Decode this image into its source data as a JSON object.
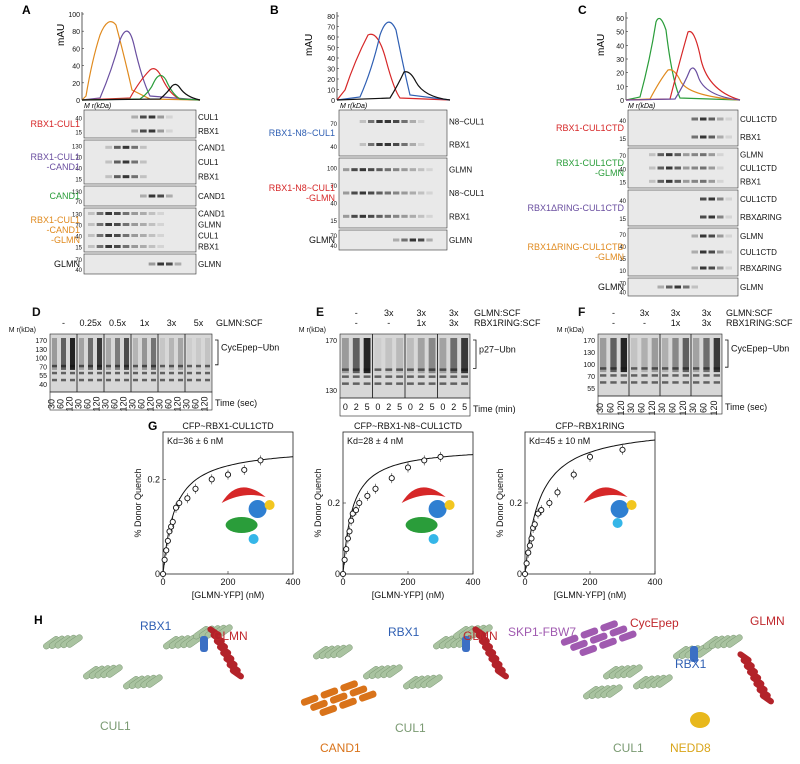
{
  "panels": {
    "A": {
      "letter": "A",
      "ylabel": "mAU",
      "yticks": [
        "100",
        "80",
        "60",
        "40",
        "20",
        "0"
      ],
      "mw_header": "M r(kDa)",
      "rows": [
        {
          "label": "RBX1-CUL1",
          "color": "#d62728",
          "right": [
            "CUL1",
            "RBX1"
          ],
          "mw": [
            "40",
            "15"
          ]
        },
        {
          "label": "RBX1-CUL1\n-CAND1",
          "color": "#6a4fa0",
          "right": [
            "CAND1",
            "CUL1",
            "RBX1"
          ],
          "mw": [
            "130",
            "70",
            "40",
            "15"
          ]
        },
        {
          "label": "CAND1",
          "color": "#2a9d3a",
          "right": [
            "CAND1"
          ],
          "mw": [
            "130",
            "70"
          ]
        },
        {
          "label": "RBX1-CUL1\n-CAND1\n-GLMN",
          "color": "#e08a1e",
          "right": [
            "CAND1",
            "GLMN",
            "CUL1",
            "RBX1"
          ],
          "mw": [
            "130",
            "70",
            "40",
            "15"
          ]
        },
        {
          "label": "GLMN",
          "color": "#111111",
          "right": [
            "GLMN"
          ],
          "mw": [
            "70",
            "40"
          ]
        }
      ]
    },
    "B": {
      "letter": "B",
      "ylabel": "mAU",
      "yticks": [
        "80",
        "70",
        "60",
        "50",
        "40",
        "30",
        "20",
        "10",
        "0"
      ],
      "mw_header": "M r(kDa)",
      "rows": [
        {
          "label": "RBX1-N8~CUL1",
          "color": "#2f5fb3",
          "right": [
            "N8~CUL1",
            "RBX1"
          ],
          "mw": [
            "70",
            "40"
          ]
        },
        {
          "label": "RBX1-N8~CUL1\n-GLMN",
          "color": "#d62728",
          "right": [
            "GLMN",
            "N8~CUL1",
            "RBX1"
          ],
          "mw": [
            "100",
            "70",
            "40",
            "15"
          ]
        },
        {
          "label": "GLMN",
          "color": "#111111",
          "right": [
            "GLMN"
          ],
          "mw": [
            "70",
            "40"
          ]
        }
      ]
    },
    "C": {
      "letter": "C",
      "ylabel": "mAU",
      "yticks": [
        "60",
        "50",
        "40",
        "30",
        "20",
        "10",
        "0"
      ],
      "mw_header": "M r(kDa)",
      "rows": [
        {
          "label": "RBX1-CUL1CTD",
          "color": "#d62728",
          "right": [
            "CUL1CTD",
            "RBX1"
          ],
          "mw": [
            "40",
            "15"
          ]
        },
        {
          "label": "RBX1-CUL1CTD\n-GLMN",
          "color": "#2a9d3a",
          "right": [
            "GLMN",
            "CUL1CTD",
            "RBX1"
          ],
          "mw": [
            "70",
            "40",
            "15"
          ]
        },
        {
          "label": "RBX1ΔRING-CUL1CTD",
          "color": "#6a4fa0",
          "right": [
            "CUL1CTD",
            "RBXΔRING"
          ],
          "mw": [
            "40",
            "15"
          ]
        },
        {
          "label": "RBX1ΔRING-CUL1CTD\n-GLMN",
          "color": "#e08a1e",
          "right": [
            "GLMN",
            "CUL1CTD",
            "RBXΔRING"
          ],
          "mw": [
            "70",
            "40",
            "15",
            "10"
          ]
        },
        {
          "label": "GLMN",
          "color": "#111111",
          "right": [
            "GLMN"
          ],
          "mw": [
            "70",
            "40"
          ]
        }
      ]
    },
    "D": {
      "letter": "D",
      "conditions": [
        "-",
        "0.25x",
        "0.5x",
        "1x",
        "3x",
        "5x"
      ],
      "cond_label": "GLMN:SCF",
      "times": [
        "30",
        "60",
        "120"
      ],
      "xlabel": "Time (sec)",
      "product": "CycEpep~Ubn",
      "mw": [
        "170",
        "130",
        "100",
        "70",
        "55",
        "40"
      ]
    },
    "E": {
      "letter": "E",
      "row1": [
        "-",
        "3x",
        "3x",
        "3x"
      ],
      "row1_label": "GLMN:SCF",
      "row2": [
        "-",
        "-",
        "1x",
        "3x"
      ],
      "row2_label": "RBX1RING:SCF",
      "times": [
        "0",
        "2",
        "5"
      ],
      "xlabel": "Time (min)",
      "product": "p27~Ubn",
      "mw": [
        "170",
        "130"
      ]
    },
    "F": {
      "letter": "F",
      "row1": [
        "-",
        "3x",
        "3x",
        "3x"
      ],
      "row1_label": "GLMN:SCF",
      "row2": [
        "-",
        "-",
        "1x",
        "3x"
      ],
      "row2_label": "RBX1RING:SCF",
      "times": [
        "30",
        "60",
        "120"
      ],
      "xlabel": "Time (sec)",
      "product": "CycEpep~Ubn",
      "mw": [
        "170",
        "130",
        "100",
        "70",
        "55"
      ]
    },
    "G": {
      "letter": "G",
      "ylabel": "% Donor Quench",
      "xlabel": "[GLMN-YFP] (nM)"
    },
    "H": {
      "letter": "H",
      "structures": [
        {
          "labels": [
            {
              "text": "RBX1",
              "color": "#2f5fb3"
            },
            {
              "text": "GLMN",
              "color": "#c0282d"
            },
            {
              "text": "CUL1",
              "color": "#7a9a72"
            }
          ]
        },
        {
          "labels": [
            {
              "text": "RBX1",
              "color": "#2f5fb3"
            },
            {
              "text": "GLMN",
              "color": "#c0282d"
            },
            {
              "text": "CAND1",
              "color": "#d9731a"
            },
            {
              "text": "CUL1",
              "color": "#7a9a72"
            }
          ]
        },
        {
          "labels": [
            {
              "text": "SKP1-FBW7",
              "color": "#a05ab0"
            },
            {
              "text": "CycEpep",
              "color": "#c0282d"
            },
            {
              "text": "RBX1",
              "color": "#2f5fb3"
            },
            {
              "text": "GLMN",
              "color": "#c0282d"
            },
            {
              "text": "CUL1",
              "color": "#7a9a72"
            },
            {
              "text": "NEDD8",
              "color": "#d9a51a"
            }
          ]
        }
      ]
    }
  },
  "chart_data": [
    {
      "type": "scatter",
      "title": "CFP~RBX1-CUL1CTD",
      "annotation": "Kd=36 ± 6 nM",
      "xlabel": "[GLMN-YFP] (nM)",
      "ylabel": "% Donor Quench",
      "xlim": [
        0,
        400
      ],
      "ylim": [
        0,
        0.3
      ],
      "xticks": [
        0,
        200,
        400
      ],
      "yticks": [
        0,
        0.2
      ],
      "points": [
        [
          0,
          0.0
        ],
        [
          5,
          0.03
        ],
        [
          10,
          0.05
        ],
        [
          15,
          0.07
        ],
        [
          20,
          0.09
        ],
        [
          25,
          0.1
        ],
        [
          30,
          0.11
        ],
        [
          40,
          0.14
        ],
        [
          50,
          0.15
        ],
        [
          75,
          0.16
        ],
        [
          100,
          0.18
        ],
        [
          150,
          0.2
        ],
        [
          200,
          0.21
        ],
        [
          250,
          0.22
        ],
        [
          300,
          0.24
        ]
      ],
      "fit": {
        "model": "hyperbolic",
        "bmax": 0.27,
        "kd": 36
      }
    },
    {
      "type": "scatter",
      "title": "CFP~RBX1-N8~CUL1CTD",
      "annotation": "Kd=28 ± 4 nM",
      "xlabel": "[GLMN-YFP] (nM)",
      "ylabel": "% Donor Quench",
      "xlim": [
        0,
        400
      ],
      "ylim": [
        0,
        0.4
      ],
      "xticks": [
        0,
        200,
        400
      ],
      "yticks": [
        0,
        0.2
      ],
      "points": [
        [
          0,
          0.0
        ],
        [
          5,
          0.04
        ],
        [
          10,
          0.07
        ],
        [
          15,
          0.1
        ],
        [
          20,
          0.12
        ],
        [
          25,
          0.15
        ],
        [
          30,
          0.17
        ],
        [
          40,
          0.18
        ],
        [
          50,
          0.2
        ],
        [
          75,
          0.22
        ],
        [
          100,
          0.24
        ],
        [
          150,
          0.27
        ],
        [
          200,
          0.3
        ],
        [
          250,
          0.32
        ],
        [
          300,
          0.33
        ]
      ],
      "fit": {
        "model": "hyperbolic",
        "bmax": 0.36,
        "kd": 28
      }
    },
    {
      "type": "scatter",
      "title": "CFP~RBX1RING",
      "annotation": "Kd=45 ± 10 nM",
      "xlabel": "[GLMN-YFP] (nM)",
      "ylabel": "% Donor Quench",
      "xlim": [
        0,
        400
      ],
      "ylim": [
        0,
        0.4
      ],
      "xticks": [
        0,
        200,
        400
      ],
      "yticks": [
        0,
        0.2
      ],
      "points": [
        [
          0,
          0.0
        ],
        [
          5,
          0.03
        ],
        [
          10,
          0.06
        ],
        [
          15,
          0.08
        ],
        [
          20,
          0.1
        ],
        [
          25,
          0.13
        ],
        [
          30,
          0.14
        ],
        [
          40,
          0.17
        ],
        [
          50,
          0.18
        ],
        [
          75,
          0.2
        ],
        [
          100,
          0.23
        ],
        [
          150,
          0.28
        ],
        [
          200,
          0.33
        ],
        [
          300,
          0.35
        ]
      ],
      "fit": {
        "model": "hyperbolic",
        "bmax": 0.42,
        "kd": 45
      }
    }
  ]
}
